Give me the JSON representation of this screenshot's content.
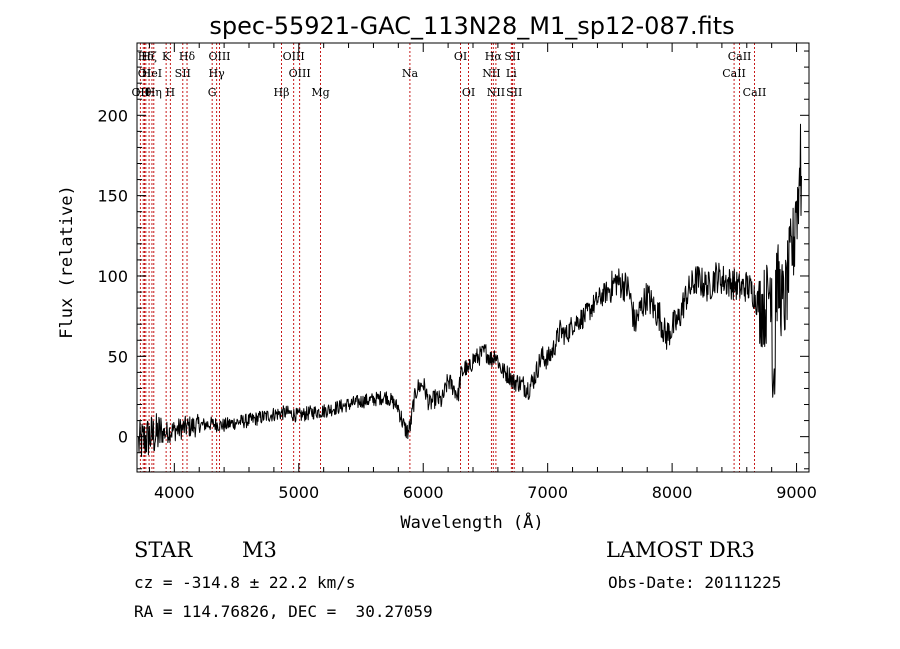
{
  "chart_data": {
    "type": "line",
    "title": "spec-55921-GAC_113N28_M1_sp12-087.fits",
    "xlabel": "Wavelength (Å)",
    "ylabel": "Flux (relative)",
    "xlim": [
      3700,
      9100
    ],
    "ylim": [
      -22,
      245
    ],
    "xticks": [
      4000,
      5000,
      6000,
      7000,
      8000,
      9000
    ],
    "yticks": [
      0,
      50,
      100,
      150,
      200
    ],
    "grid": false,
    "continuum": {
      "x": [
        3700,
        3800,
        3900,
        4000,
        4100,
        4200,
        4300,
        4400,
        4500,
        4600,
        4700,
        4800,
        4900,
        5000,
        5100,
        5200,
        5300,
        5400,
        5500,
        5600,
        5700,
        5750,
        5800,
        5850,
        5880,
        5900,
        5920,
        5950,
        6000,
        6050,
        6100,
        6150,
        6200,
        6250,
        6280,
        6300,
        6340,
        6360,
        6400,
        6450,
        6500,
        6550,
        6580,
        6620,
        6650,
        6700,
        6720,
        6760,
        6800,
        6850,
        6900,
        6950,
        7000,
        7050,
        7100,
        7150,
        7200,
        7300,
        7400,
        7500,
        7550,
        7600,
        7650,
        7700,
        7750,
        7800,
        7850,
        7900,
        7950,
        8000,
        8050,
        8100,
        8150,
        8200,
        8250,
        8300,
        8350,
        8400,
        8450,
        8500,
        8550,
        8600,
        8650,
        8700,
        8750,
        8800,
        8850,
        8900,
        8950,
        9000,
        9050
      ],
      "y": [
        -5,
        0,
        2,
        4,
        6,
        7,
        8,
        7,
        9,
        10,
        12,
        14,
        15,
        13,
        15,
        16,
        18,
        20,
        22,
        23,
        25,
        22,
        18,
        5,
        3,
        8,
        20,
        30,
        33,
        20,
        24,
        22,
        35,
        30,
        25,
        38,
        43,
        40,
        48,
        50,
        53,
        48,
        52,
        43,
        40,
        38,
        34,
        34,
        32,
        30,
        38,
        50,
        48,
        55,
        66,
        63,
        70,
        75,
        85,
        92,
        97,
        95,
        92,
        70,
        80,
        88,
        80,
        75,
        62,
        68,
        72,
        85,
        93,
        98,
        95,
        93,
        100,
        98,
        96,
        95,
        92,
        94,
        90,
        82,
        80,
        100,
        95,
        80,
        110,
        130,
        155
      ]
    },
    "reference_lines": [
      {
        "label": "OII",
        "wavelength": 3727,
        "row": 2
      },
      {
        "label": "Hθ",
        "wavelength": 3750,
        "row": 2
      },
      {
        "label": "OI",
        "wavelength": 3760,
        "row": 1
      },
      {
        "label": "Hδ",
        "wavelength": 3771,
        "row": 0
      },
      {
        "label": "Hζ",
        "wavelength": 3797,
        "row": 0
      },
      {
        "label": "HeI",
        "wavelength": 3820,
        "row": 1
      },
      {
        "label": "Hη",
        "wavelength": 3835,
        "row": 2
      },
      {
        "label": "K",
        "wavelength": 3934,
        "row": 0
      },
      {
        "label": "SII",
        "wavelength": 4068,
        "row": 1
      },
      {
        "label": "H",
        "wavelength": 3968,
        "row": 2
      },
      {
        "label": "Hδ",
        "wavelength": 4102,
        "row": 0
      },
      {
        "label": "OIII",
        "wavelength": 4363,
        "row": 0
      },
      {
        "label": "Hγ",
        "wavelength": 4340,
        "row": 1
      },
      {
        "label": "G",
        "wavelength": 4304,
        "row": 2
      },
      {
        "label": "OIII",
        "wavelength": 4959,
        "row": 0
      },
      {
        "label": "OIII",
        "wavelength": 5007,
        "row": 1
      },
      {
        "label": "Hβ",
        "wavelength": 4861,
        "row": 2
      },
      {
        "label": "Mg",
        "wavelength": 5175,
        "row": 2
      },
      {
        "label": "Na",
        "wavelength": 5893,
        "row": 1
      },
      {
        "label": "OI",
        "wavelength": 6300,
        "row": 0
      },
      {
        "label": "OI",
        "wavelength": 6364,
        "row": 2
      },
      {
        "label": "Hα",
        "wavelength": 6563,
        "row": 0
      },
      {
        "label": "SII",
        "wavelength": 6717,
        "row": 0
      },
      {
        "label": "NII",
        "wavelength": 6548,
        "row": 1
      },
      {
        "label": "Li",
        "wavelength": 6708,
        "row": 1
      },
      {
        "label": "NII",
        "wavelength": 6584,
        "row": 2
      },
      {
        "label": "SII",
        "wavelength": 6731,
        "row": 2
      },
      {
        "label": "CaII",
        "wavelength": 8542,
        "row": 0
      },
      {
        "label": "CaII",
        "wavelength": 8498,
        "row": 1
      },
      {
        "label": "CaII",
        "wavelength": 8662,
        "row": 2
      }
    ]
  },
  "info": {
    "class": "STAR",
    "subclass": "M3",
    "survey": "LAMOST DR3",
    "velocity": "cz = -314.8 ± 22.2 km/s",
    "obs_date": "Obs-Date: 20111225",
    "coords": "RA = 114.76826, DEC =  30.27059"
  },
  "colors": {
    "spectrum": "#000000",
    "reference_line": "#c00000",
    "axes": "#000000"
  }
}
